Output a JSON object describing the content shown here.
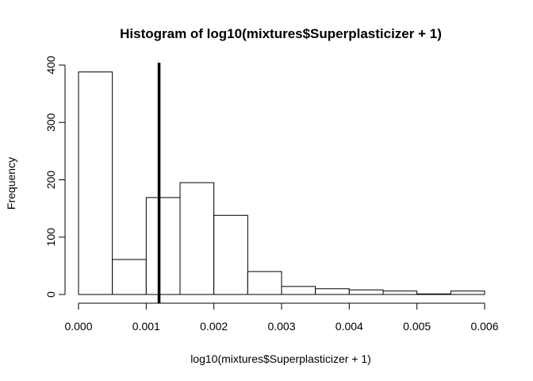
{
  "chart_data": {
    "type": "bar",
    "title": "Histogram of log10(mixtures$Superplasticizer + 1)",
    "xlabel": "log10(mixtures$Superplasticizer + 1)",
    "ylabel": "Frequency",
    "bin_edges": [
      0.0,
      0.0005,
      0.001,
      0.0015,
      0.002,
      0.0025,
      0.003,
      0.0035,
      0.004,
      0.0045,
      0.005,
      0.0055,
      0.006
    ],
    "values": [
      388,
      61,
      169,
      195,
      138,
      40,
      14,
      10,
      8,
      6,
      1,
      6
    ],
    "xlim": [
      0.0,
      0.006
    ],
    "ylim": [
      0,
      400
    ],
    "x_ticks": [
      "0.000",
      "0.001",
      "0.002",
      "0.003",
      "0.004",
      "0.005",
      "0.006"
    ],
    "x_tick_values": [
      0.0,
      0.001,
      0.002,
      0.003,
      0.004,
      0.005,
      0.006
    ],
    "y_ticks": [
      "0",
      "100",
      "200",
      "300",
      "400"
    ],
    "y_tick_values": [
      0,
      100,
      200,
      300,
      400
    ],
    "vline": 0.00119,
    "grid": false,
    "bar_fill": "#ffffff",
    "bar_stroke": "#000000"
  }
}
